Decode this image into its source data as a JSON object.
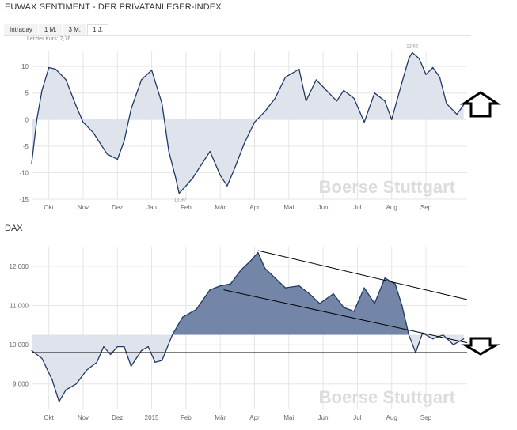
{
  "header": {
    "title": "EUWAX SENTIMENT - DER PRIVATANLEGER-INDEX"
  },
  "tabs": [
    {
      "label": "Intraday",
      "active": false
    },
    {
      "label": "1 M.",
      "active": false
    },
    {
      "label": "3 M.",
      "active": false
    },
    {
      "label": "1 J.",
      "active": true
    }
  ],
  "colors": {
    "line": "#1f3a66",
    "sentiment_fill": "#dfe3ec",
    "dax_fill_light": "#dfe3ec",
    "dax_fill_dark": "#7486a7",
    "grid": "#e5e5e5",
    "axis_text": "#666666",
    "watermark": "#dcdcdc"
  },
  "watermark": "Boerse Stuttgart",
  "chart_data": [
    {
      "type": "area",
      "title": "EUWAX SENTIMENT - DER PRIVATANLEGER-INDEX",
      "subtitle": "Letzter Kurs: 2,76",
      "baseline": 0,
      "ylim": [
        -15,
        13
      ],
      "yticks": [
        "10",
        "5",
        "0",
        "-5",
        "-10",
        "-15"
      ],
      "ytick_values": [
        10,
        5,
        0,
        -5,
        -10,
        -15
      ],
      "xticks": [
        "Okt",
        "Nov",
        "Dez",
        "Jan",
        "Feb",
        "Mär",
        "Apr",
        "Mai",
        "Jun",
        "Jul",
        "Aug",
        "Sep"
      ],
      "xtick_positions": [
        0.5,
        1.5,
        2.5,
        3.5,
        4.5,
        5.5,
        6.5,
        7.5,
        8.5,
        9.5,
        10.5,
        11.5
      ],
      "xlim": [
        0,
        12.7
      ],
      "annotations": [
        {
          "text": "12,65",
          "x": 11.1,
          "y": 12.65
        },
        {
          "text": "-13,90",
          "x": 4.3,
          "y": -13.9
        }
      ],
      "x": [
        0.0,
        0.15,
        0.3,
        0.5,
        0.7,
        1.0,
        1.3,
        1.5,
        1.8,
        2.0,
        2.2,
        2.5,
        2.7,
        2.9,
        3.2,
        3.5,
        3.8,
        4.0,
        4.2,
        4.3,
        4.5,
        4.7,
        5.0,
        5.2,
        5.5,
        5.7,
        5.9,
        6.2,
        6.5,
        6.8,
        7.1,
        7.4,
        7.8,
        8.0,
        8.3,
        8.6,
        8.9,
        9.1,
        9.4,
        9.7,
        10.0,
        10.3,
        10.5,
        10.8,
        11.0,
        11.1,
        11.3,
        11.5,
        11.7,
        11.9,
        12.1,
        12.4,
        12.6
      ],
      "values": [
        -8.2,
        0,
        5.5,
        9.8,
        9.5,
        7.5,
        2.5,
        -0.5,
        -2.5,
        -4.5,
        -6.5,
        -7.5,
        -4,
        2,
        7.5,
        9.3,
        3,
        -6,
        -11,
        -13.9,
        -12.5,
        -11,
        -8,
        -6,
        -10.5,
        -12.5,
        -9.5,
        -4.5,
        -0.5,
        1.5,
        4,
        8,
        9.5,
        3.5,
        7.5,
        5.5,
        3.5,
        5.5,
        4,
        -0.5,
        5,
        3.5,
        0,
        7,
        11.5,
        12.65,
        11.5,
        8.5,
        9.8,
        8,
        3,
        1,
        2.76
      ],
      "value_labels": []
    },
    {
      "type": "area",
      "title": "DAX",
      "baseline": 10250,
      "ylim": [
        8350,
        12500
      ],
      "yticks": [
        "12.000",
        "11.000",
        "10.000",
        "9.000"
      ],
      "ytick_values": [
        12000,
        11000,
        10000,
        9000
      ],
      "xticks": [
        "Okt",
        "Nov",
        "Dez",
        "2015",
        "Feb",
        "Mär",
        "Apr",
        "Mai",
        "Jun",
        "Jul",
        "Aug",
        "Sep"
      ],
      "xtick_positions": [
        0.5,
        1.5,
        2.5,
        3.5,
        4.5,
        5.5,
        6.5,
        7.5,
        8.5,
        9.5,
        10.5,
        11.5
      ],
      "xlim": [
        0,
        12.7
      ],
      "x": [
        0.0,
        0.3,
        0.6,
        0.8,
        1.0,
        1.3,
        1.6,
        1.9,
        2.1,
        2.3,
        2.5,
        2.7,
        2.9,
        3.2,
        3.4,
        3.6,
        3.8,
        4.1,
        4.4,
        4.8,
        5.2,
        5.5,
        5.8,
        6.1,
        6.4,
        6.6,
        6.8,
        7.1,
        7.4,
        7.8,
        8.1,
        8.4,
        8.8,
        9.1,
        9.4,
        9.7,
        10.0,
        10.3,
        10.6,
        10.8,
        11.0,
        11.2,
        11.4,
        11.7,
        12.0,
        12.3,
        12.6
      ],
      "values": [
        9850,
        9650,
        9100,
        8550,
        8850,
        9000,
        9350,
        9550,
        9950,
        9750,
        9950,
        9950,
        9450,
        9850,
        9950,
        9550,
        9600,
        10250,
        10700,
        10900,
        11400,
        11500,
        11550,
        11900,
        12150,
        12350,
        11950,
        11700,
        11450,
        11500,
        11300,
        11050,
        11300,
        10950,
        10850,
        11450,
        11050,
        11700,
        11550,
        11000,
        10250,
        9800,
        10300,
        10150,
        10250,
        10000,
        10150
      ],
      "trendlines": [
        {
          "from": [
            6.6,
            12400
          ],
          "to": [
            12.7,
            11150
          ]
        },
        {
          "from": [
            5.6,
            11400
          ],
          "to": [
            12.7,
            10050
          ]
        },
        {
          "from": [
            0.0,
            9800
          ],
          "to": [
            12.7,
            9800
          ]
        }
      ]
    }
  ],
  "overlays": {
    "up_arrow": "up-arrow-icon",
    "down_arrow": "down-arrow-icon"
  }
}
